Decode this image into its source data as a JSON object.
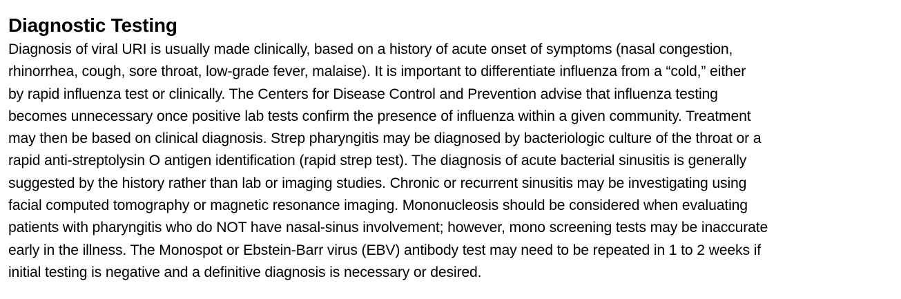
{
  "section": {
    "title": "Diagnostic Testing",
    "body": "Diagnosis of viral URI is usually made clinically, based on a history of acute onset of symptoms (nasal congestion,\nrhinorrhea, cough, sore throat, low-grade fever, malaise). It is important to differentiate influenza from a “cold,” either\nby rapid influenza test or clinically. The Centers for Disease Control and Prevention advise that influenza testing\nbecomes unnecessary once positive lab tests confirm the presence of influenza within a given community. Treatment\nmay then be based on clinical diagnosis. Strep pharyngitis may be diagnosed by bacteriologic culture of the throat or a\nrapid anti-streptolysin O antigen identification (rapid strep test). The diagnosis of acute bacterial sinusitis is generally\nsuggested by the history rather than lab or imaging studies. Chronic or recurrent sinusitis may be  investigating using\nfacial computed tomography or magnetic resonance imaging. Mononucleosis should be considered when evaluating\npatients with pharyngitis who do NOT have nasal-sinus involvement; however, mono screening tests may be inaccurate\nearly in the illness. The Monospot or Ebstein-Barr virus (EBV) antibody test may need to be repeated in 1 to 2 weeks if\ninitial testing is negative and a definitive diagnosis is necessary or desired."
  }
}
